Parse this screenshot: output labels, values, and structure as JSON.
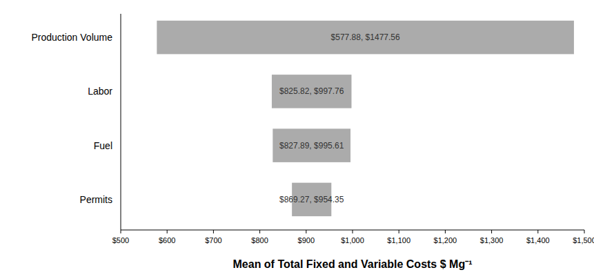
{
  "chart_data": {
    "type": "bar",
    "orientation": "horizontal",
    "x_label": "Mean of Total Fixed and Variable Costs $ Mg⁻¹",
    "categories": [
      "Production Volume",
      "Labor",
      "Fuel",
      "Permits"
    ],
    "values": [
      [
        577.88,
        1477.56
      ],
      [
        825.82,
        997.76
      ],
      [
        827.89,
        995.61
      ],
      [
        869.27,
        954.35
      ]
    ],
    "value_labels": [
      "$577.88, $1477.56",
      "$825.82, $997.76",
      "$827.89, $995.61",
      "$869.27, $954.35"
    ],
    "data_labels": true,
    "color": "#ababab",
    "xlim": [
      500,
      1500
    ],
    "xticks": [
      {
        "value": 500,
        "label": "$500"
      },
      {
        "value": 600,
        "label": "$600"
      },
      {
        "value": 700,
        "label": "$700"
      },
      {
        "value": 800,
        "label": "$800"
      },
      {
        "value": 900,
        "label": "$900"
      },
      {
        "value": 1000,
        "label": "$1,000"
      },
      {
        "value": 1100,
        "label": "$1,100"
      },
      {
        "value": 1200,
        "label": "$1,200"
      },
      {
        "value": 1300,
        "label": "$1,300"
      },
      {
        "value": 1400,
        "label": "$1,400"
      },
      {
        "value": 1500,
        "label": "$1,500"
      }
    ],
    "grid": false
  }
}
